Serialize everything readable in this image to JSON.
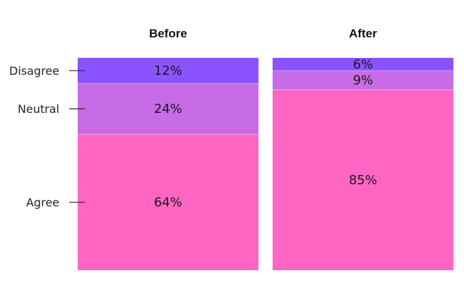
{
  "chart_data": {
    "type": "bar",
    "stacked": true,
    "normalized_to": 100,
    "categories": [
      "Before",
      "After"
    ],
    "series": [
      {
        "name": "Disagree",
        "values": [
          12,
          6
        ],
        "labels": [
          "12%",
          "6%"
        ],
        "color": "#8A53FF"
      },
      {
        "name": "Neutral",
        "values": [
          24,
          9
        ],
        "labels": [
          "24%",
          "9%"
        ],
        "color": "#C76BE6"
      },
      {
        "name": "Agree",
        "values": [
          64,
          85
        ],
        "labels": [
          "64%",
          "85%"
        ],
        "color": "#FF66C4"
      }
    ],
    "title": "",
    "xlabel": "",
    "ylabel": "",
    "ylim": [
      0,
      100
    ],
    "grid": false,
    "legend": "left"
  }
}
